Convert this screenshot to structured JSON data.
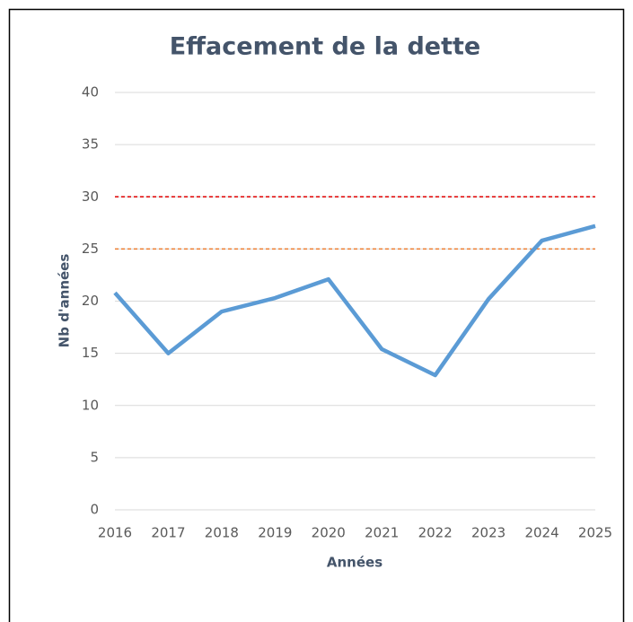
{
  "chart_data": {
    "type": "line",
    "title": "Effacement de la dette",
    "x_label": "Années",
    "y_label": "Nb d'années",
    "x": [
      2016,
      2017,
      2018,
      2019,
      2020,
      2021,
      2022,
      2023,
      2024,
      2025
    ],
    "series": [
      {
        "color": "#5b9bd5",
        "values": [
          20.8,
          15,
          19,
          20.3,
          22.1,
          15.4,
          12.9,
          20.2,
          25.8,
          27.2
        ]
      }
    ],
    "reference_lines": [
      {
        "value": 30,
        "color": "#e00000"
      },
      {
        "value": 25,
        "color": "#ed7d31"
      }
    ],
    "xlim": [
      2016,
      2025
    ],
    "xticks": [
      2016,
      2017,
      2018,
      2019,
      2020,
      2021,
      2022,
      2023,
      2024,
      2025
    ],
    "ylim": [
      0,
      40
    ],
    "yticks": [
      0,
      5,
      10,
      15,
      20,
      25,
      30,
      35,
      40
    ],
    "grid": true
  }
}
